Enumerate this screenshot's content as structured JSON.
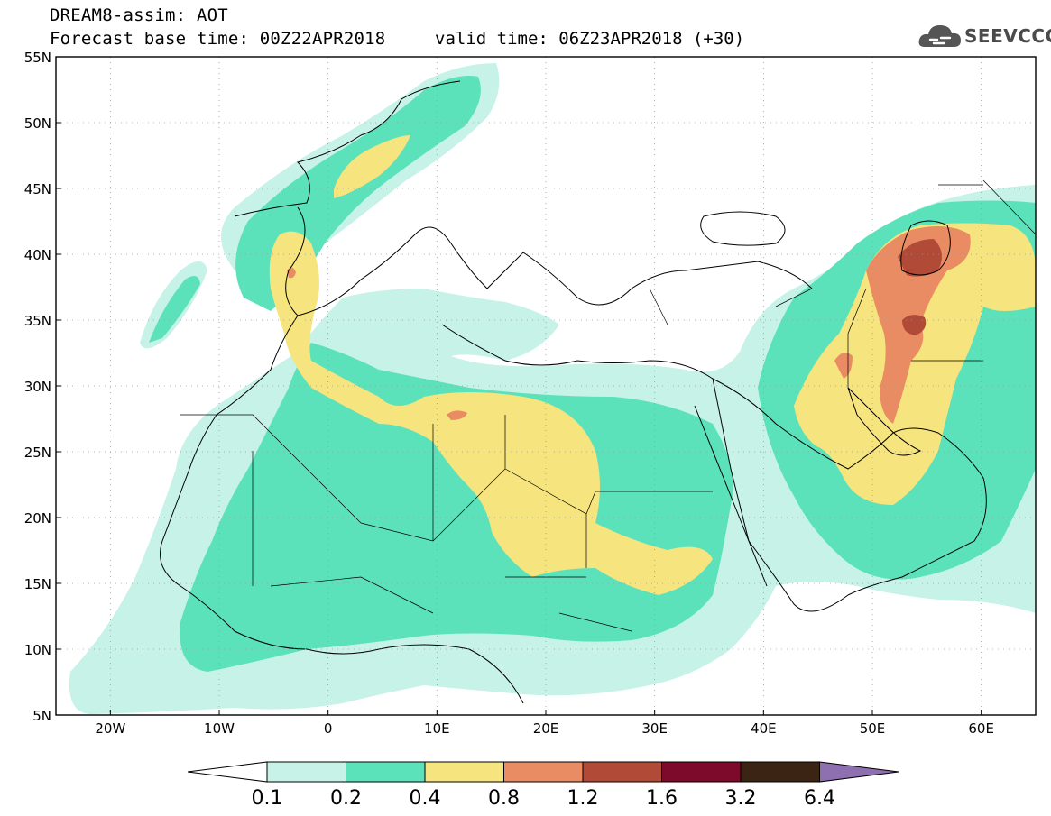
{
  "title": {
    "line1": "DREAM8-assim: AOT",
    "base_time": "Forecast base time: 00Z22APR2018",
    "valid_time": "valid time: 06Z23APR2018 (+30)"
  },
  "logo": {
    "text": "SEEVCCC",
    "icon": "cloud-logo-icon"
  },
  "map": {
    "lat_labels": [
      "55N",
      "50N",
      "45N",
      "40N",
      "35N",
      "30N",
      "25N",
      "20N",
      "15N",
      "10N",
      "5N"
    ],
    "lon_labels": [
      "20W",
      "10W",
      "0",
      "10E",
      "20E",
      "30E",
      "40E",
      "50E",
      "60E"
    ],
    "lat_range": [
      5,
      55
    ],
    "lon_range": [
      -25,
      65
    ],
    "grid": "dotted"
  },
  "colorbar": {
    "labels": [
      "0.1",
      "0.2",
      "0.4",
      "0.8",
      "1.2",
      "1.6",
      "3.2",
      "6.4"
    ],
    "colors": [
      "#ffffff",
      "#c6f2e8",
      "#5ce2bb",
      "#f6e47e",
      "#e98c63",
      "#b24a38",
      "#7d0a2a",
      "#3c2414",
      "#8e6fb0"
    ]
  },
  "colors": {
    "c1": "#c6f2e8",
    "c2": "#5ce2bb",
    "c3": "#f6e47e",
    "c4": "#e98c63",
    "c5": "#b24a38",
    "c6": "#7d0a2a",
    "c7": "#3c2414",
    "c8": "#8e6fb0"
  }
}
